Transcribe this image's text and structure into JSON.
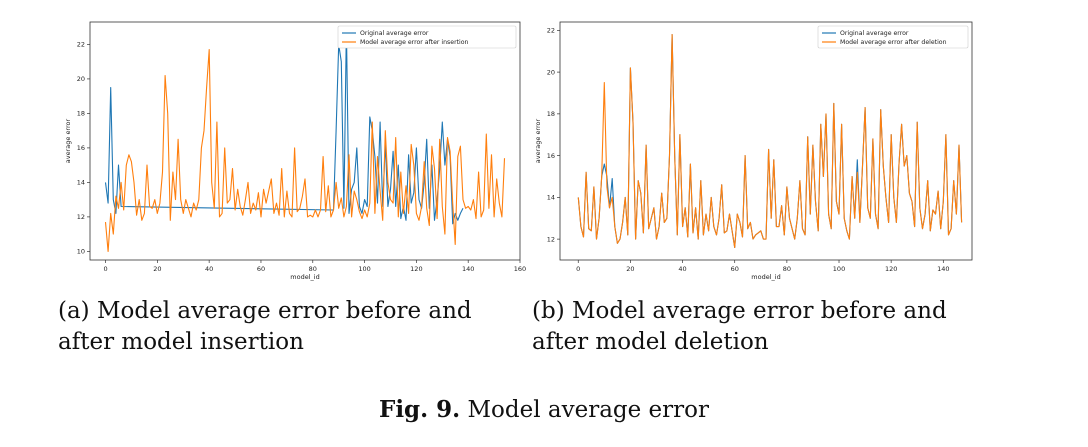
{
  "figure_caption": {
    "label": "Fig. 9.",
    "text": "Model average error"
  },
  "colors": {
    "original": "#1f77b4",
    "modified": "#ff7f0e"
  },
  "chart_data": [
    {
      "type": "line",
      "caption": "(a) Model average error before and after model insertion",
      "xlabel": "model_id",
      "ylabel": "average error",
      "xlim": [
        -6,
        160
      ],
      "ylim": [
        9.5,
        23.3
      ],
      "xticks": [
        0,
        20,
        40,
        60,
        80,
        100,
        120,
        140,
        160
      ],
      "yticks": [
        10,
        12,
        14,
        16,
        18,
        20,
        22
      ],
      "legend_position": "top-right",
      "series": [
        {
          "name": "Original average error",
          "x": [
            0,
            1,
            2,
            3,
            4,
            5,
            6,
            88,
            89,
            90,
            91,
            92,
            93,
            94,
            95,
            96,
            97,
            98,
            99,
            100,
            101,
            102,
            103,
            104,
            105,
            106,
            107,
            108,
            109,
            110,
            111,
            112,
            113,
            114,
            115,
            116,
            117,
            118,
            119,
            120,
            121,
            122,
            123,
            124,
            125,
            126,
            127,
            128,
            129,
            130,
            131,
            132,
            133,
            134,
            135,
            136,
            137,
            138
          ],
          "y": [
            14.0,
            12.8,
            19.5,
            13.0,
            12.2,
            15.0,
            12.6,
            12.4,
            17.0,
            22.0,
            21.0,
            12.5,
            23.0,
            12.2,
            13.6,
            14.0,
            16.0,
            12.6,
            12.2,
            13.0,
            12.6,
            17.8,
            17.0,
            15.5,
            12.8,
            17.5,
            12.6,
            16.3,
            12.6,
            13.6,
            15.8,
            12.6,
            15.0,
            11.9,
            12.6,
            11.8,
            15.6,
            12.8,
            13.4,
            16.0,
            13.0,
            12.5,
            14.0,
            16.5,
            12.5,
            15.0,
            11.8,
            13.0,
            14.8,
            17.5,
            15.0,
            16.5,
            15.5,
            11.6,
            12.2,
            11.8,
            12.2,
            12.5
          ]
        },
        {
          "name": "Model average error after insertion",
          "x": [
            0,
            1,
            2,
            3,
            4,
            5,
            6,
            7,
            8,
            9,
            10,
            11,
            12,
            13,
            14,
            15,
            16,
            17,
            18,
            19,
            20,
            21,
            22,
            23,
            24,
            25,
            26,
            27,
            28,
            29,
            30,
            31,
            32,
            33,
            34,
            35,
            36,
            37,
            38,
            39,
            40,
            41,
            42,
            43,
            44,
            45,
            46,
            47,
            48,
            49,
            50,
            51,
            52,
            53,
            54,
            55,
            56,
            57,
            58,
            59,
            60,
            61,
            62,
            63,
            64,
            65,
            66,
            67,
            68,
            69,
            70,
            71,
            72,
            73,
            74,
            75,
            76,
            77,
            78,
            79,
            80,
            81,
            82,
            83,
            84,
            85,
            86,
            87,
            88,
            89,
            90,
            91,
            92,
            93,
            94,
            95,
            96,
            97,
            98,
            99,
            100,
            101,
            102,
            103,
            104,
            105,
            106,
            107,
            108,
            109,
            110,
            111,
            112,
            113,
            114,
            115,
            116,
            117,
            118,
            119,
            120,
            121,
            122,
            123,
            124,
            125,
            126,
            127,
            128,
            129,
            130,
            131,
            132,
            133,
            134,
            135,
            136,
            137,
            138,
            139,
            140,
            141,
            142,
            143,
            144,
            145,
            146,
            147,
            148,
            149,
            150,
            151,
            152,
            153,
            154
          ],
          "y": [
            11.7,
            10.0,
            12.2,
            11.0,
            13.2,
            12.5,
            14.0,
            12.4,
            15.0,
            15.6,
            15.2,
            14.0,
            12.1,
            13.0,
            11.8,
            12.2,
            15.0,
            12.6,
            12.5,
            13.0,
            12.2,
            12.8,
            14.6,
            20.2,
            18.0,
            11.8,
            14.6,
            13.0,
            16.5,
            13.0,
            12.2,
            13.0,
            12.5,
            12.0,
            12.8,
            12.4,
            13.0,
            16.0,
            17.0,
            19.5,
            21.7,
            14.0,
            12.5,
            17.5,
            12.0,
            12.2,
            16.0,
            12.8,
            13.0,
            14.8,
            12.4,
            13.6,
            12.6,
            12.1,
            13.0,
            14.0,
            12.2,
            12.8,
            12.4,
            13.4,
            12.0,
            13.6,
            12.8,
            13.5,
            14.2,
            12.2,
            12.8,
            12.1,
            14.8,
            12.0,
            13.5,
            12.2,
            12.0,
            16.0,
            12.3,
            12.5,
            13.2,
            14.2,
            12.0,
            12.1,
            12.0,
            12.4,
            12.0,
            12.4,
            15.5,
            12.3,
            13.8,
            12.0,
            12.4,
            14.0,
            12.5,
            13.1,
            12.0,
            12.6,
            15.6,
            12.0,
            13.5,
            13.0,
            12.3,
            11.9,
            12.4,
            12.0,
            12.8,
            17.5,
            12.2,
            15.5,
            13.5,
            11.8,
            17.0,
            14.0,
            13.0,
            12.8,
            16.6,
            12.0,
            14.6,
            12.2,
            13.8,
            12.2,
            16.2,
            15.0,
            12.2,
            11.8,
            12.6,
            15.2,
            12.5,
            11.5,
            16.1,
            14.8,
            11.9,
            16.5,
            12.6,
            11.0,
            16.6,
            15.8,
            12.8,
            10.4,
            15.5,
            16.1,
            13.0,
            12.5,
            12.6,
            12.4,
            13.0,
            11.9,
            14.6,
            12.0,
            12.4,
            16.8,
            12.5,
            15.6,
            12.0,
            14.2,
            12.8,
            12.0,
            15.4
          ]
        }
      ]
    },
    {
      "type": "line",
      "caption": "(b) Model average error before and after model deletion",
      "xlabel": "model_id",
      "ylabel": "average error",
      "xlim": [
        -7,
        151
      ],
      "ylim": [
        11.0,
        22.4
      ],
      "xticks": [
        0,
        20,
        40,
        60,
        80,
        100,
        120,
        140
      ],
      "yticks": [
        12,
        14,
        16,
        18,
        20,
        22
      ],
      "legend_position": "top-right",
      "series": [
        {
          "name": "Original average error",
          "x": [
            0,
            1,
            2,
            3,
            4,
            5,
            6,
            7,
            8,
            9,
            10,
            11,
            12,
            13,
            14,
            15,
            16,
            17,
            18,
            19,
            20,
            21,
            22,
            23,
            24,
            25,
            26,
            27,
            28,
            29,
            30,
            31,
            32,
            33,
            34,
            35,
            36,
            37,
            38,
            39,
            40,
            41,
            42,
            43,
            44,
            45,
            46,
            47,
            48,
            49,
            50,
            51,
            52,
            53,
            54,
            55,
            56,
            57,
            58,
            59,
            60,
            61,
            62,
            63,
            64,
            65,
            66,
            67,
            68,
            69,
            70,
            71,
            72,
            73,
            74,
            75,
            76,
            77,
            78,
            79,
            80,
            81,
            82,
            83,
            84,
            85,
            86,
            87,
            88,
            89,
            90,
            91,
            92,
            93,
            94,
            95,
            96,
            97,
            98,
            99,
            100,
            101,
            102,
            103,
            104,
            105,
            106,
            107,
            108,
            109,
            110,
            111,
            112,
            113,
            114,
            115,
            116,
            117,
            118,
            119,
            120,
            121,
            122,
            123,
            124,
            125,
            126,
            127,
            128,
            129,
            130,
            131,
            132,
            133,
            134,
            135,
            136,
            137,
            138,
            139,
            140,
            141,
            142,
            143,
            144,
            145,
            146,
            147
          ],
          "y": [
            14.0,
            12.6,
            12.1,
            15.2,
            12.5,
            12.4,
            14.5,
            12.0,
            13.0,
            15.0,
            15.6,
            15.0,
            13.5,
            14.9,
            12.6,
            11.8,
            12.0,
            12.8,
            14.0,
            12.2,
            20.2,
            17.6,
            12.0,
            14.8,
            14.2,
            12.3,
            16.5,
            12.5,
            13.0,
            13.5,
            12.0,
            12.6,
            14.2,
            12.8,
            13.0,
            16.0,
            21.8,
            16.0,
            12.2,
            17.0,
            12.6,
            13.5,
            12.1,
            15.6,
            12.3,
            13.5,
            12.0,
            14.8,
            12.2,
            13.2,
            12.4,
            14.0,
            12.6,
            12.2,
            13.0,
            14.6,
            12.3,
            12.4,
            13.2,
            12.4,
            11.6,
            13.2,
            12.8,
            12.1,
            16.0,
            12.5,
            12.8,
            12.0,
            12.2,
            12.3,
            12.4,
            12.0,
            12.0,
            16.3,
            13.0,
            15.8,
            12.6,
            12.6,
            13.6,
            12.2,
            14.5,
            13.0,
            12.5,
            12.0,
            13.0,
            14.8,
            12.5,
            12.2,
            16.9,
            13.2,
            16.5,
            13.8,
            12.4,
            17.5,
            15.0,
            18.0,
            13.2,
            12.5,
            18.5,
            13.8,
            13.2,
            17.5,
            13.0,
            12.4,
            12.0,
            15.0,
            13.0,
            15.8,
            12.8,
            15.5,
            18.3,
            13.5,
            13.0,
            16.8,
            13.2,
            12.5,
            18.2,
            15.5,
            14.0,
            12.8,
            17.0,
            14.0,
            12.8,
            15.6,
            17.5,
            15.5,
            16.0,
            14.2,
            13.8,
            12.6,
            17.6,
            13.5,
            12.5,
            13.2,
            14.8,
            12.4,
            13.4,
            13.2,
            14.3,
            12.5,
            13.8,
            17.0,
            12.2,
            12.5,
            14.8,
            13.2,
            16.5,
            12.8
          ]
        },
        {
          "name": "Model average error after deletion",
          "x": [
            0,
            1,
            2,
            3,
            4,
            5,
            6,
            7,
            8,
            9,
            10,
            11,
            12,
            13,
            14,
            15,
            16,
            17,
            18,
            19,
            20,
            21,
            22,
            23,
            24,
            25,
            26,
            27,
            28,
            29,
            30,
            31,
            32,
            33,
            34,
            35,
            36,
            37,
            38,
            39,
            40,
            41,
            42,
            43,
            44,
            45,
            46,
            47,
            48,
            49,
            50,
            51,
            52,
            53,
            54,
            55,
            56,
            57,
            58,
            59,
            60,
            61,
            62,
            63,
            64,
            65,
            66,
            67,
            68,
            69,
            70,
            71,
            72,
            73,
            74,
            75,
            76,
            77,
            78,
            79,
            80,
            81,
            82,
            83,
            84,
            85,
            86,
            87,
            88,
            89,
            90,
            91,
            92,
            93,
            94,
            95,
            96,
            97,
            98,
            99,
            100,
            101,
            102,
            103,
            104,
            105,
            106,
            107,
            108,
            109,
            110,
            111,
            112,
            113,
            114,
            115,
            116,
            117,
            118,
            119,
            120,
            121,
            122,
            123,
            124,
            125,
            126,
            127,
            128,
            129,
            130,
            131,
            132,
            133,
            134,
            135,
            136,
            137,
            138,
            139,
            140,
            141,
            142,
            143,
            144,
            145,
            146,
            147
          ],
          "y": [
            14.0,
            12.6,
            12.1,
            15.2,
            12.5,
            12.4,
            14.5,
            12.0,
            13.0,
            15.0,
            19.5,
            14.5,
            13.5,
            14.0,
            12.6,
            11.8,
            12.0,
            12.8,
            14.0,
            12.2,
            20.2,
            17.6,
            12.0,
            14.8,
            14.2,
            12.3,
            16.5,
            12.5,
            13.0,
            13.5,
            12.0,
            12.6,
            14.2,
            12.8,
            13.0,
            16.0,
            21.8,
            16.0,
            12.2,
            17.0,
            12.6,
            13.5,
            12.1,
            15.6,
            12.3,
            13.5,
            12.0,
            14.8,
            12.2,
            13.2,
            12.4,
            14.0,
            12.6,
            12.2,
            13.0,
            14.6,
            12.3,
            12.4,
            13.2,
            12.4,
            11.6,
            13.2,
            12.8,
            12.1,
            16.0,
            12.5,
            12.8,
            12.0,
            12.2,
            12.3,
            12.4,
            12.0,
            12.0,
            16.3,
            13.0,
            15.8,
            12.6,
            12.6,
            13.6,
            12.2,
            14.5,
            13.0,
            12.5,
            12.0,
            13.0,
            14.8,
            12.5,
            12.2,
            16.9,
            13.2,
            16.5,
            13.8,
            12.4,
            17.5,
            15.0,
            18.0,
            13.2,
            12.5,
            18.5,
            13.8,
            13.2,
            17.5,
            13.0,
            12.4,
            12.0,
            15.0,
            13.0,
            15.2,
            12.8,
            15.5,
            18.3,
            13.5,
            13.0,
            16.8,
            13.2,
            12.5,
            18.2,
            15.5,
            14.0,
            12.8,
            17.0,
            14.0,
            12.8,
            15.6,
            17.5,
            15.5,
            16.0,
            14.2,
            13.8,
            12.6,
            17.6,
            13.5,
            12.5,
            13.2,
            14.8,
            12.4,
            13.4,
            13.2,
            14.3,
            12.5,
            13.8,
            17.0,
            12.2,
            12.5,
            14.8,
            13.2,
            16.5,
            12.8
          ]
        }
      ]
    }
  ]
}
